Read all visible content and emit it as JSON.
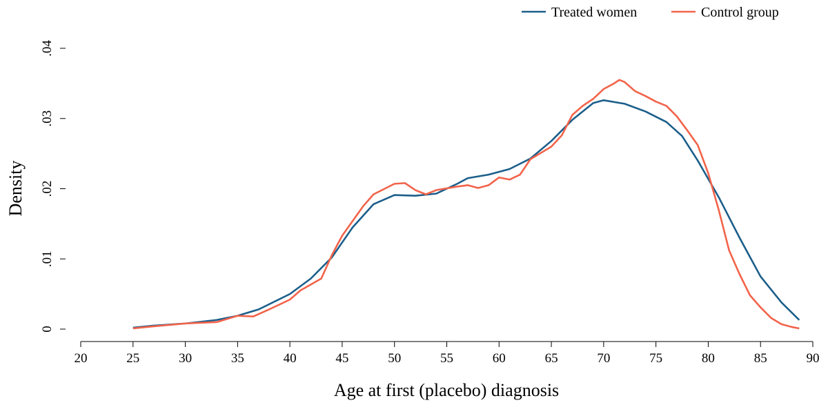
{
  "chart_data": {
    "type": "line",
    "xlabel": "Age at first (placebo) diagnosis",
    "ylabel": "Density",
    "xlim": [
      20,
      90
    ],
    "ylim": [
      0,
      0.04
    ],
    "xticks": [
      20,
      25,
      30,
      35,
      40,
      45,
      50,
      55,
      60,
      65,
      70,
      75,
      80,
      85,
      90
    ],
    "yticks": [
      0,
      {
        "value": 0.01,
        "label": ".01"
      },
      {
        "value": 0.02,
        "label": ".02"
      },
      {
        "value": 0.03,
        "label": ".03"
      },
      {
        "value": 0.04,
        "label": ".04"
      }
    ],
    "legend": "top-right",
    "series": [
      {
        "name": "Treated women",
        "color": "#1b5e8a",
        "x": [
          25,
          27,
          30,
          33,
          35,
          37,
          40,
          42,
          44,
          46,
          48,
          50,
          52,
          54,
          56,
          57,
          59,
          61,
          63,
          65,
          67,
          69,
          70,
          72,
          74,
          76,
          77.5,
          79,
          81,
          83,
          85,
          87,
          88.7
        ],
        "values": [
          0.0002,
          0.0005,
          0.0008,
          0.0013,
          0.0019,
          0.0028,
          0.005,
          0.0072,
          0.0102,
          0.0145,
          0.0178,
          0.0191,
          0.019,
          0.0193,
          0.0207,
          0.0215,
          0.022,
          0.0228,
          0.0243,
          0.0268,
          0.0298,
          0.0322,
          0.0326,
          0.0321,
          0.031,
          0.0295,
          0.0275,
          0.024,
          0.0188,
          0.013,
          0.0075,
          0.0038,
          0.0013
        ]
      },
      {
        "name": "Control group",
        "color": "#f2634a",
        "x": [
          25,
          27,
          30,
          33,
          35,
          36.5,
          38,
          40,
          41,
          43,
          44,
          45,
          47,
          48,
          50,
          51,
          52,
          53,
          54,
          56,
          57,
          58,
          59,
          60,
          61,
          62,
          63,
          65,
          66,
          67,
          68,
          69,
          70,
          71,
          71.5,
          72,
          73,
          74,
          75,
          76,
          77,
          78,
          79,
          80,
          81,
          82,
          83,
          84,
          85,
          86,
          87,
          88,
          88.7
        ],
        "values": [
          0.0001,
          0.0004,
          0.0008,
          0.001,
          0.0019,
          0.0018,
          0.0028,
          0.0042,
          0.0055,
          0.0072,
          0.0105,
          0.0133,
          0.0175,
          0.0192,
          0.0207,
          0.0208,
          0.0198,
          0.0192,
          0.0198,
          0.0203,
          0.0205,
          0.0201,
          0.0205,
          0.0216,
          0.0213,
          0.022,
          0.0242,
          0.026,
          0.0276,
          0.0305,
          0.0318,
          0.0328,
          0.0342,
          0.035,
          0.0355,
          0.0352,
          0.0339,
          0.0332,
          0.0324,
          0.0318,
          0.0303,
          0.0283,
          0.0262,
          0.0222,
          0.017,
          0.0112,
          0.0078,
          0.0048,
          0.0031,
          0.0016,
          0.0007,
          0.0003,
          0.0001
        ]
      }
    ]
  }
}
